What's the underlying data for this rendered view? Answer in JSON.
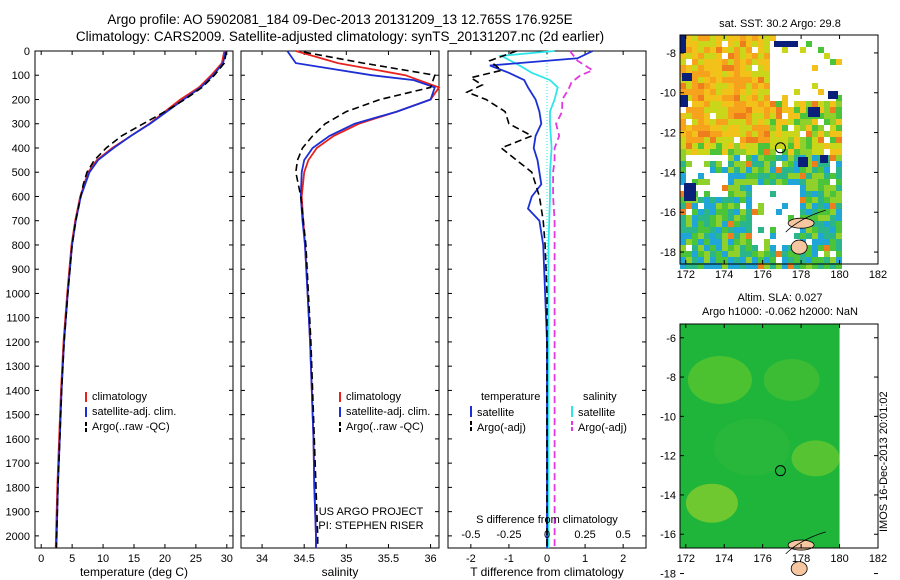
{
  "header": {
    "title_line1": "Argo profile: AO 5902081_184 09-Dec-2013 20131209_13 12.765S 176.925E",
    "title_line2": "Climatology: CARS2009. Satellite-adjusted climatology: synTS_20131207.nc (2d earlier)"
  },
  "depth_ticks": [
    0,
    100,
    200,
    300,
    400,
    500,
    600,
    700,
    800,
    900,
    1000,
    1100,
    1200,
    1300,
    1400,
    1500,
    1600,
    1700,
    1800,
    1900,
    2000
  ],
  "colors": {
    "clim": "#e8231e",
    "sat": "#1c2fd6",
    "argo": "#000000",
    "sat_s": "#2ee6ea",
    "argo_s": "#e23ae0",
    "map_bg": "#1fb53a",
    "land": "#f6c6a0"
  },
  "chart_data": [
    {
      "type": "line",
      "xlabel": "temperature (deg C)",
      "xlim": [
        -1,
        31
      ],
      "ylim": [
        2050,
        0
      ],
      "xticks": [
        0,
        5,
        10,
        15,
        20,
        25,
        30
      ],
      "xtick_labels": [
        "0",
        "5",
        "10",
        "15",
        "20",
        "25",
        "30"
      ],
      "legend": [
        "climatology",
        "satellite-adj. clim.",
        "Argo(..raw -QC)"
      ],
      "series": [
        {
          "name": "climatology",
          "depth": [
            0,
            50,
            100,
            150,
            200,
            250,
            300,
            350,
            400,
            450,
            500,
            600,
            700,
            800,
            1000,
            1200,
            1400,
            1600,
            1800,
            2000,
            2050
          ],
          "values": [
            29.6,
            29.2,
            27.5,
            25.5,
            22.5,
            20.0,
            17.5,
            14.5,
            11.5,
            9.0,
            7.6,
            6.3,
            5.5,
            4.9,
            4.2,
            3.6,
            3.2,
            2.9,
            2.6,
            2.4,
            2.35
          ]
        },
        {
          "name": "satellite-adj. clim.",
          "depth": [
            0,
            50,
            100,
            150,
            200,
            250,
            300,
            350,
            400,
            450,
            500,
            600,
            700,
            800,
            1000,
            1200,
            1400,
            1600,
            1800,
            2000,
            2050
          ],
          "values": [
            29.8,
            29.4,
            27.8,
            25.8,
            23.0,
            20.3,
            17.6,
            14.5,
            11.7,
            9.2,
            7.8,
            6.4,
            5.6,
            5.0,
            4.3,
            3.7,
            3.3,
            3.0,
            2.7,
            2.5,
            2.45
          ]
        },
        {
          "name": "Argo(..raw -QC)",
          "depth": [
            5,
            50,
            100,
            150,
            200,
            250,
            300,
            350,
            400,
            450,
            500,
            550,
            600,
            700,
            800,
            1000,
            1200,
            1400,
            1600,
            1800,
            2000,
            2050
          ],
          "values": [
            29.9,
            29.6,
            28.0,
            26.0,
            23.2,
            20.0,
            16.5,
            13.0,
            10.5,
            8.6,
            7.4,
            6.8,
            6.4,
            5.6,
            5.0,
            4.3,
            3.7,
            3.3,
            3.0,
            2.7,
            2.5,
            2.45
          ]
        }
      ]
    },
    {
      "type": "line",
      "xlabel": "salinity",
      "xlim": [
        33.75,
        36.1
      ],
      "ylim": [
        2050,
        0
      ],
      "xticks": [
        34,
        34.5,
        35,
        35.5,
        36
      ],
      "xtick_labels": [
        "34",
        "34.5",
        "35",
        "35.5",
        "36"
      ],
      "legend": [
        "climatology",
        "satellite-adj. clim.",
        "Argo(..raw -QC)"
      ],
      "annotation_line1": "US ARGO PROJECT",
      "annotation_line2": "PI: STEPHEN RISER",
      "series": [
        {
          "name": "climatology",
          "depth": [
            0,
            50,
            100,
            150,
            200,
            250,
            300,
            350,
            400,
            450,
            500,
            600,
            700,
            800,
            1000,
            1200,
            1400,
            1600,
            1800,
            2000,
            2050
          ],
          "values": [
            34.4,
            34.9,
            35.7,
            36.1,
            36.0,
            35.6,
            35.15,
            34.85,
            34.65,
            34.55,
            34.5,
            34.47,
            34.49,
            34.51,
            34.54,
            34.57,
            34.59,
            34.61,
            34.62,
            34.64,
            34.64
          ]
        },
        {
          "name": "satellite-adj. clim.",
          "depth": [
            0,
            50,
            100,
            120,
            150,
            200,
            250,
            300,
            350,
            400,
            450,
            500,
            600,
            700,
            800,
            1000,
            1200,
            1400,
            1600,
            1800,
            2000,
            2050
          ],
          "values": [
            34.3,
            34.4,
            35.3,
            35.8,
            36.05,
            36.0,
            35.6,
            35.1,
            34.8,
            34.6,
            34.5,
            34.47,
            34.46,
            34.48,
            34.51,
            34.54,
            34.57,
            34.59,
            34.61,
            34.62,
            34.64,
            34.64
          ]
        },
        {
          "name": "Argo(..raw -QC)",
          "depth": [
            5,
            50,
            100,
            150,
            200,
            250,
            300,
            350,
            400,
            450,
            500,
            550,
            600,
            700,
            800,
            1000,
            1200,
            1400,
            1600,
            1800,
            2000,
            2050
          ],
          "values": [
            34.5,
            35.2,
            36.05,
            36.0,
            35.4,
            35.0,
            34.75,
            34.6,
            34.48,
            34.42,
            34.4,
            34.43,
            34.46,
            34.49,
            34.52,
            34.55,
            34.58,
            34.6,
            34.62,
            34.64,
            34.66,
            34.66
          ]
        }
      ]
    },
    {
      "type": "line",
      "xlabel": "T difference from climatology",
      "top_label": "S difference from climatology",
      "xlim": [
        -2.6,
        2.6
      ],
      "ylim": [
        2050,
        0
      ],
      "xticks": [
        -2,
        -1,
        0,
        1,
        2
      ],
      "xtick_labels": [
        "-2",
        "-1",
        "0",
        "1",
        "2"
      ],
      "sticks": [
        -0.5,
        -0.25,
        0,
        0.25,
        0.5
      ],
      "stick_labels": [
        "-0.5",
        "-0.25",
        "0",
        "0.25",
        "0.5"
      ],
      "legend_temperature_heading": "temperature",
      "legend_salinity_heading": "salinity",
      "legend": [
        "satellite",
        "Argo(-adj)",
        "satellite",
        "Argo(-adj)"
      ],
      "series": [
        {
          "name": "temperature satellite",
          "depth": [
            0,
            30,
            60,
            90,
            120,
            150,
            200,
            250,
            300,
            350,
            400,
            450,
            500,
            550,
            600,
            650,
            700,
            800,
            1000,
            1200,
            1400,
            1600,
            1800,
            2000,
            2050
          ],
          "values": [
            1.2,
            0.8,
            -1.5,
            -1.0,
            -0.6,
            -0.5,
            -0.3,
            -0.2,
            -0.15,
            -0.3,
            -0.35,
            -0.25,
            -0.2,
            -0.15,
            -0.4,
            -0.5,
            -0.2,
            -0.1,
            -0.05,
            0.0,
            0.0,
            0.0,
            0.0,
            0.0,
            0.0
          ]
        },
        {
          "name": "temperature Argo(-adj)",
          "depth": [
            0,
            40,
            80,
            110,
            140,
            170,
            200,
            250,
            300,
            350,
            400,
            450,
            500,
            550,
            600,
            700,
            800,
            1000,
            1200,
            1400,
            1600,
            1800,
            2000,
            2050
          ],
          "values": [
            -0.8,
            -1.5,
            -1.2,
            -2.0,
            -1.7,
            -2.1,
            -1.6,
            -1.1,
            -1.0,
            -0.4,
            -1.2,
            -0.8,
            -0.4,
            -0.3,
            -0.2,
            -0.1,
            -0.05,
            0.0,
            0.0,
            0.0,
            0.0,
            0.0,
            0.0,
            0.0
          ]
        },
        {
          "name": "salinity satellite",
          "depth": [
            0,
            20,
            60,
            90,
            120,
            150,
            200,
            250,
            300,
            400,
            500,
            600,
            800,
            1000,
            1200,
            1400,
            1600,
            1800,
            2000,
            2050
          ],
          "values": [
            0.05,
            -0.3,
            -0.18,
            -0.1,
            0.02,
            0.07,
            0.05,
            0.02,
            0.02,
            0.03,
            0.02,
            0.02,
            0.01,
            0.01,
            0.01,
            0.01,
            0.01,
            0.01,
            0.01,
            0.01
          ]
        },
        {
          "name": "salinity Argo(-adj)",
          "depth": [
            0,
            40,
            80,
            100,
            130,
            160,
            200,
            250,
            300,
            350,
            400,
            450,
            500,
            600,
            700,
            800,
            1000,
            1200,
            1400,
            1600,
            1800,
            2000,
            2050
          ],
          "values": [
            0.15,
            0.2,
            0.3,
            0.22,
            0.16,
            0.14,
            0.1,
            0.1,
            0.06,
            0.08,
            0.05,
            0.05,
            0.04,
            0.04,
            0.05,
            0.05,
            0.05,
            0.05,
            0.05,
            0.05,
            0.05,
            0.05,
            0.05
          ]
        }
      ]
    }
  ],
  "maps": {
    "sst_title": "sat. SST: 30.2  Argo: 29.8",
    "sla_title_line1": "Altim. SLA: 0.027",
    "sla_title_line2": "Argo h1000: -0.062 h2000: NaN",
    "lon_ticks": [
      172,
      174,
      176,
      178,
      180,
      182
    ],
    "sst_lat_ticks": [
      -8,
      -10,
      -12,
      -14,
      -16,
      -18
    ],
    "sla_lat_ticks": [
      -6,
      -8,
      -10,
      -12,
      -14,
      -16,
      -18
    ]
  },
  "stamp": "IMOS 16-Dec-2013 20:01:02"
}
